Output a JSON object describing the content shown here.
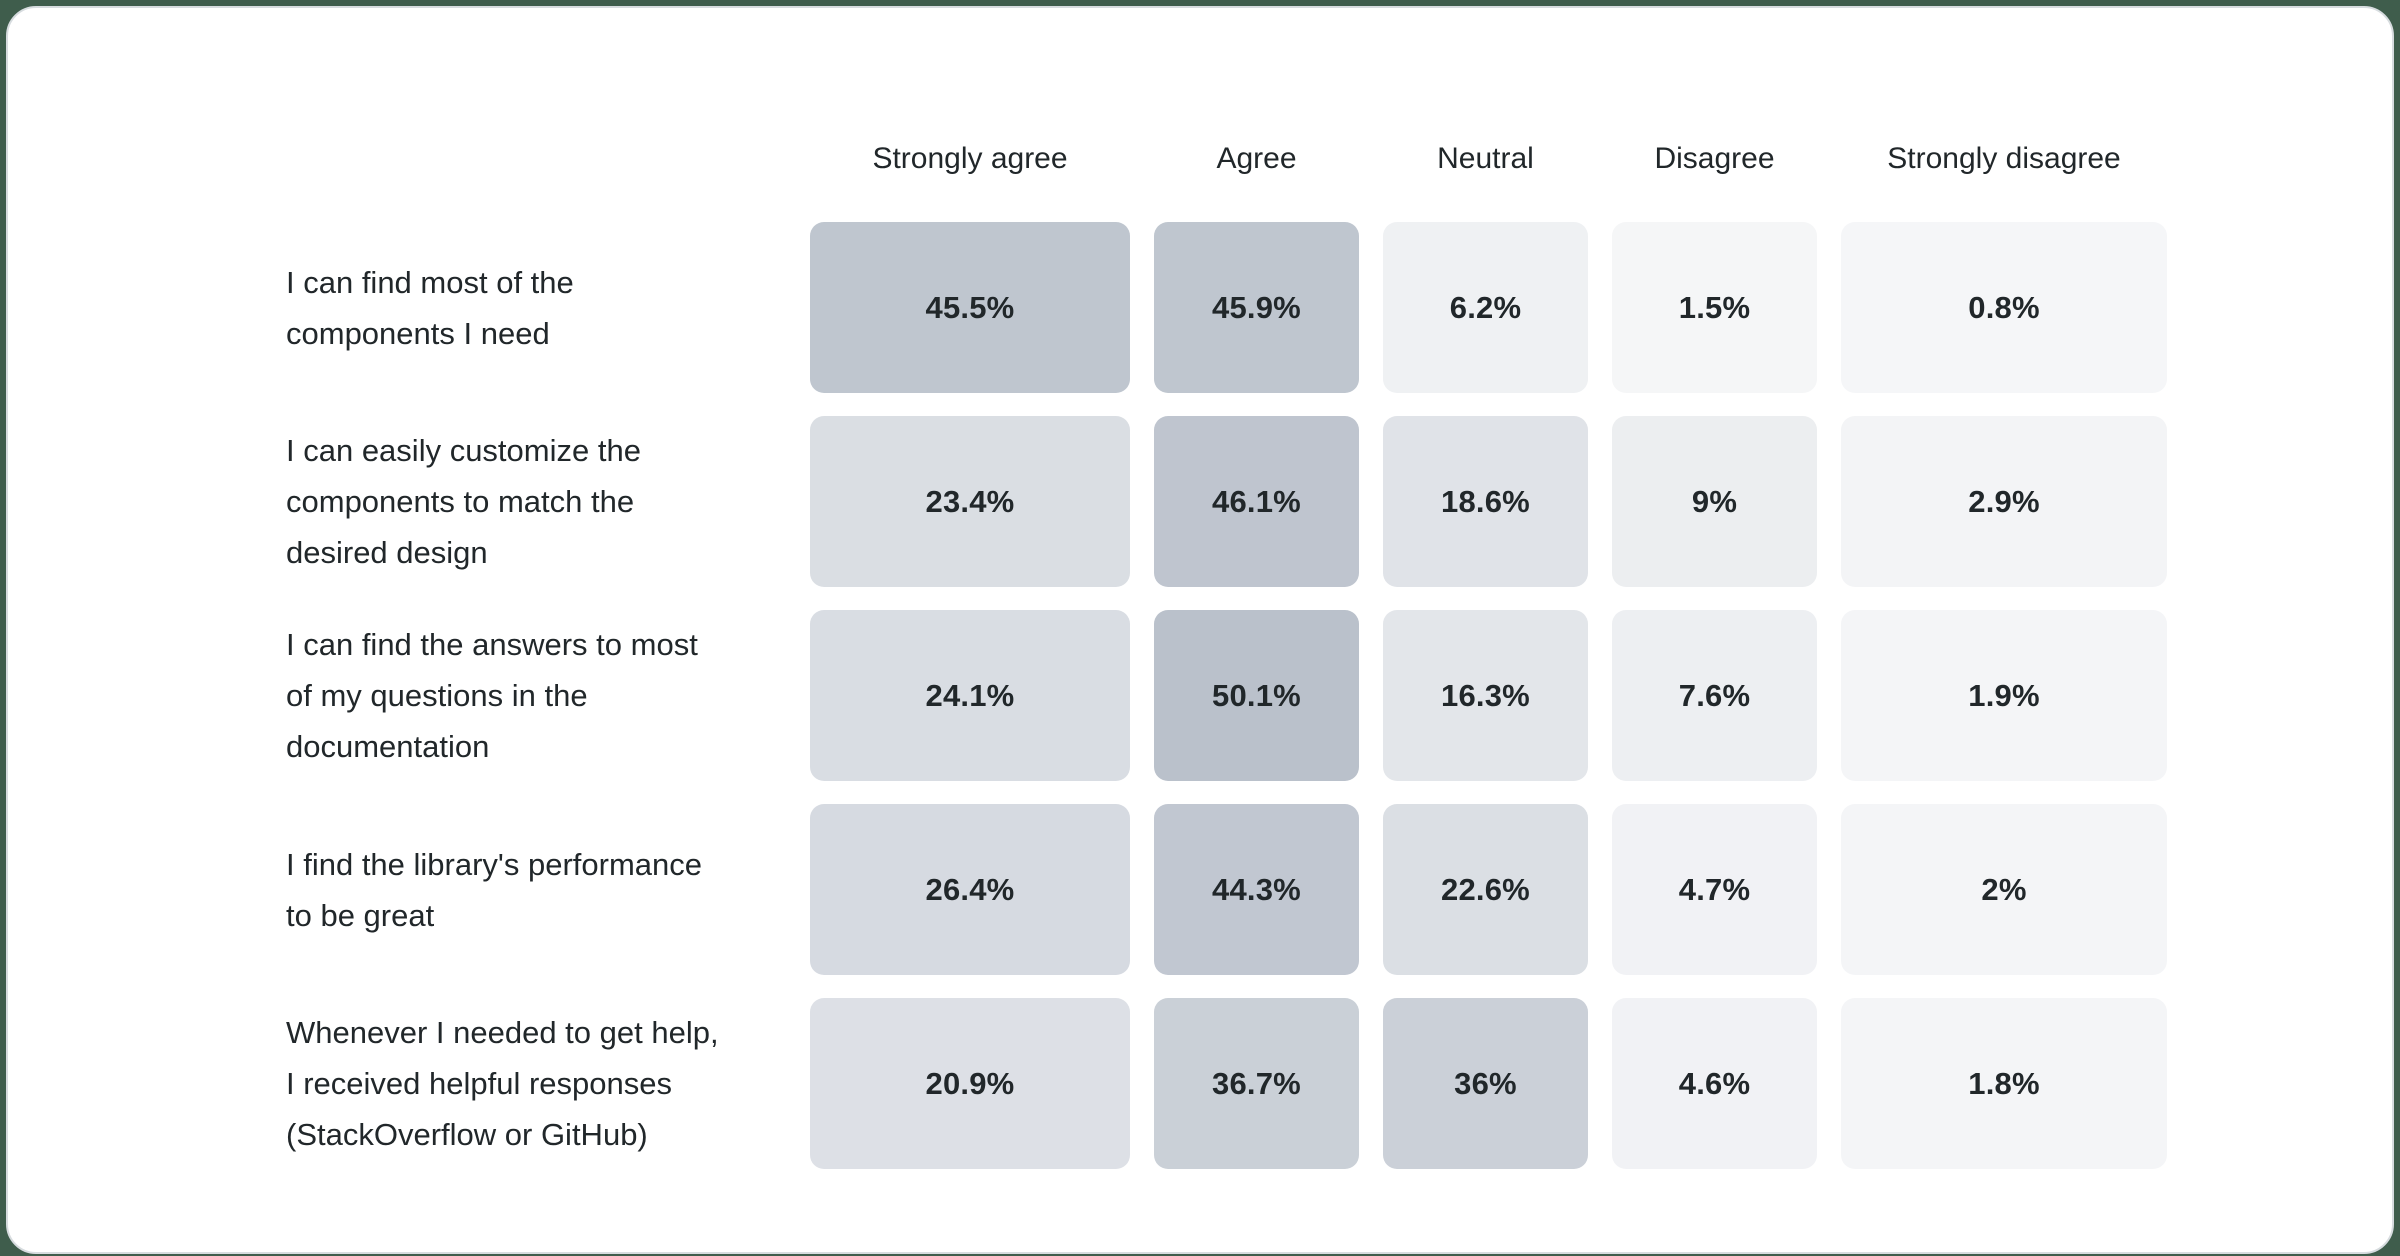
{
  "chart_data": {
    "type": "heatmap",
    "title": "",
    "legend_position": "none",
    "grid": false,
    "columns": [
      "Strongly agree",
      "Agree",
      "Neutral",
      "Disagree",
      "Strongly disagree"
    ],
    "rows": [
      {
        "label_lines": [
          "I can find most of the",
          "components I need"
        ],
        "label": "I can find most of the components I need",
        "values": [
          45.5,
          45.9,
          6.2,
          1.5,
          0.8
        ],
        "display": [
          "45.5%",
          "45.9%",
          "6.2%",
          "1.5%",
          "0.8%"
        ]
      },
      {
        "label_lines": [
          "I can easily customize the",
          "components to match the",
          "desired design"
        ],
        "label": "I can easily customize the components to match the desired design",
        "values": [
          23.4,
          46.1,
          18.6,
          9,
          2.9
        ],
        "display": [
          "23.4%",
          "46.1%",
          "18.6%",
          "9%",
          "2.9%"
        ]
      },
      {
        "label_lines": [
          "I can find the answers to most",
          "of my questions in the",
          "documentation"
        ],
        "label": "I can find the answers to most of my questions in the documentation",
        "values": [
          24.1,
          50.1,
          16.3,
          7.6,
          1.9
        ],
        "display": [
          "24.1%",
          "50.1%",
          "16.3%",
          "7.6%",
          "1.9%"
        ]
      },
      {
        "label_lines": [
          "I find the library's performance",
          "to be great"
        ],
        "label": "I find the library's performance to be great",
        "values": [
          26.4,
          44.3,
          22.6,
          4.7,
          2
        ],
        "display": [
          "26.4%",
          "44.3%",
          "22.6%",
          "4.7%",
          "2%"
        ]
      },
      {
        "label_lines": [
          "Whenever I needed to get help,",
          "I received helpful responses",
          "(StackOverflow or GitHub)"
        ],
        "label": "Whenever I needed to get help, I received helpful responses (StackOverflow or GitHub)",
        "values": [
          20.9,
          36.7,
          36,
          4.6,
          1.8
        ],
        "display": [
          "20.9%",
          "36.7%",
          "36%",
          "4.6%",
          "1.8%"
        ]
      }
    ],
    "colors": {
      "cell_base_rgb": [
        100,
        116,
        139
      ],
      "text": "#21272a",
      "card_background": "#ffffff",
      "card_border": "#d7dcdf",
      "page_background": "#3f5d4c"
    },
    "value_range": [
      0,
      100
    ]
  }
}
